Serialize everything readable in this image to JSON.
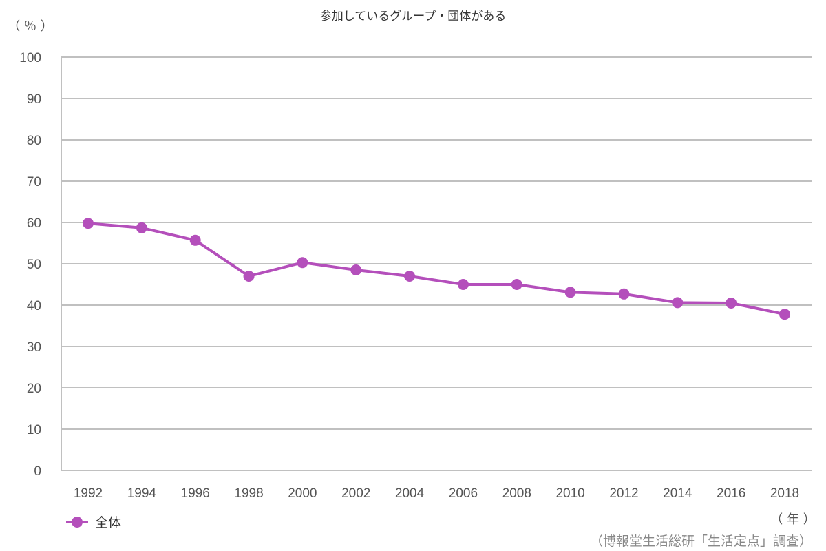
{
  "chart_data": {
    "type": "line",
    "title": "参加しているグループ・団体がある",
    "ylabel": "（ ％ ）",
    "xlabel": "（ 年 ）",
    "source": "（博報堂生活総研「生活定点」調査）",
    "ylim": [
      0,
      100
    ],
    "yticks": [
      0,
      10,
      20,
      30,
      40,
      50,
      60,
      70,
      80,
      90,
      100
    ],
    "grid": true,
    "legend_position": "bottom-left",
    "categories": [
      "1992",
      "1994",
      "1996",
      "1998",
      "2000",
      "2002",
      "2004",
      "2006",
      "2008",
      "2010",
      "2012",
      "2014",
      "2016",
      "2018"
    ],
    "series": [
      {
        "name": "全体",
        "color": "#b44fbb",
        "values": [
          59.8,
          58.7,
          55.7,
          47.0,
          50.3,
          48.5,
          47.0,
          45.0,
          45.0,
          43.1,
          42.7,
          40.6,
          40.5,
          37.8
        ]
      }
    ]
  }
}
